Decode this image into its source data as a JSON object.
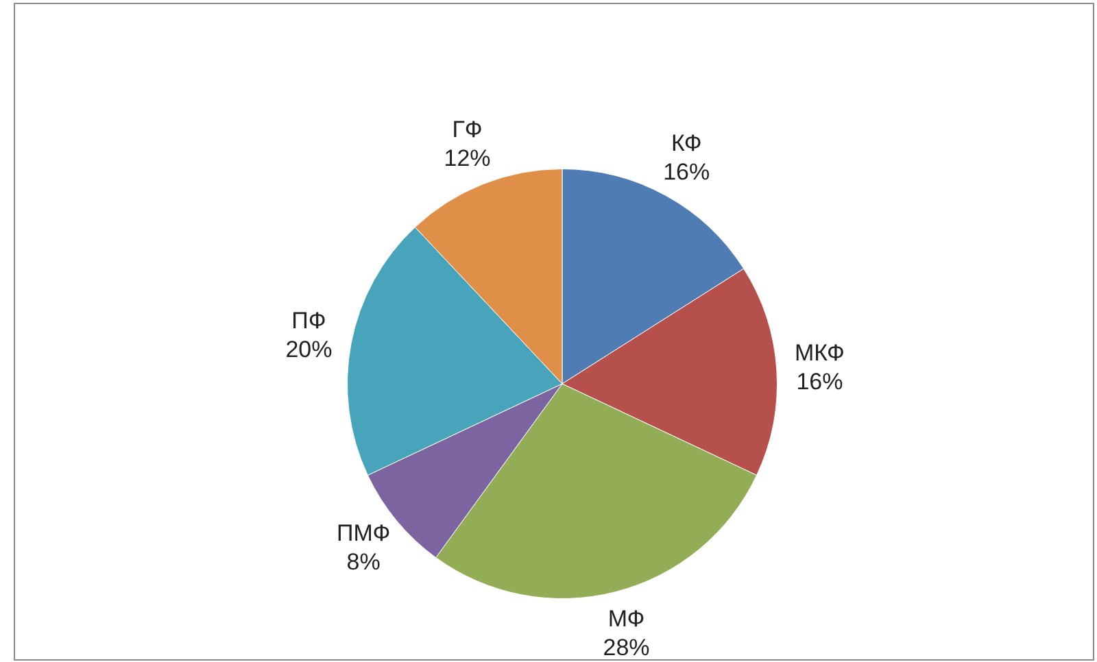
{
  "chart_data": {
    "type": "pie",
    "categories": [
      "КФ",
      "МКФ",
      "МФ",
      "ПМФ",
      "ПФ",
      "ГФ"
    ],
    "values": [
      16,
      16,
      28,
      8,
      20,
      12
    ],
    "value_labels": [
      "16%",
      "16%",
      "28%",
      "8%",
      "20%",
      "12%"
    ],
    "colors": [
      "#4f7db3",
      "#b6504d",
      "#92ad56",
      "#7c64a0",
      "#48a4ba",
      "#e08f49"
    ],
    "legend": false
  }
}
